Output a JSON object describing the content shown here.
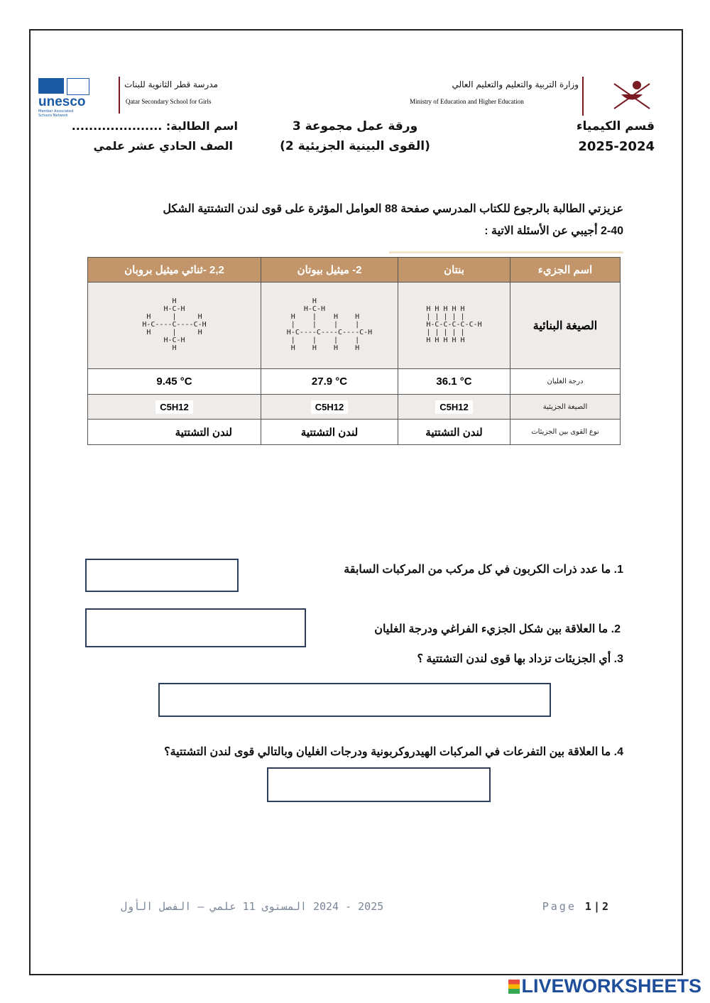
{
  "header": {
    "school_ar": "مدرسة قطر الثانوية للبنات",
    "school_en": "Qatar Secondary School for Girls",
    "ministry_ar": "وزارة التربية والتعليم والتعليم العالي",
    "ministry_en": "Ministry of Education and Higher Education",
    "unesco": "unesco",
    "unesco_sub": "Member Associated Schools Network",
    "department": "قسم الكيمياء",
    "year": "2025-2024",
    "worksheet_title": "ورقة عمل مجموعة 3",
    "worksheet_subtitle": "(القوى البينية الجزيئية 2)",
    "student_name": "اسم الطالبة: .....................",
    "grade": "الصف الحادي عشر علمي"
  },
  "intro": {
    "line1": "عزيزتي الطالبة بالرجوع للكتاب المدرسي صفحة 88 العوامل المؤثرة على قوى لندن التشتتية الشكل",
    "line2": "2-40 أجيبي عن الأسئلة الاتية :"
  },
  "table": {
    "row_labels": [
      "اسم الجزيء",
      "الصيغة البنائية",
      "درجة الغليان",
      "الصيغة الجزيئية",
      "نوع القوى بين الجزيئات"
    ],
    "molecules": [
      {
        "name": "بنتان",
        "structure": "H H H H H\n| | | | |\nH-C-C-C-C-C-H\n| | | | |\nH H H H H",
        "boiling_point": "36.1 °C",
        "formula": "C5H12",
        "force": "لندن التشتتية"
      },
      {
        "name": "2- ميثيل بيوتان",
        "structure": "      H\n    H-C-H\n H    |    H    H\n |    |    |    |\nH-C----C----C----C-H\n |    |    |    |\n H    H    H    H",
        "boiling_point": "27.9 °C",
        "formula": "C5H12",
        "force": "لندن التشتتية"
      },
      {
        "name": "2,2 -ثنائي ميثيل بروبان",
        "structure": "       H\n     H-C-H\n H     |     H\nH-C----C----C-H\n H     |     H\n     H-C-H\n       H",
        "boiling_point": "9.45 °C",
        "formula": "C5H12",
        "force": "لندن التشتتية"
      }
    ]
  },
  "questions": [
    {
      "text": "1. ما عدد ذرات الكربون في  كل مركب من المركبات السابقة",
      "answer": ""
    },
    {
      "text": "2. ما العلاقة بين شكل الجزيء الفراغي  ودرجة الغليان",
      "answer": ""
    },
    {
      "text": "3. أي الجزيئات  تزداد بها قوى لندن التشتتية ؟",
      "answer": ""
    },
    {
      "text": "4. ما العلاقة بين التفرعات في المركبات الهيدروكربونية ودرجات الغليان وبالتالي قوى لندن التشتتية؟",
      "answer": ""
    }
  ],
  "footer": {
    "text": "2025 - 2024  المستوى 11 علمي – الفصل الأول",
    "page_label": "Page",
    "page": "1",
    "total": "2"
  },
  "brand": "LIVEWORKSHEETS",
  "colors": {
    "table_header": "#c2966a",
    "accent": "#7a1a22",
    "box_border": "#2d3e5a",
    "brand": "#1f4f9b"
  }
}
